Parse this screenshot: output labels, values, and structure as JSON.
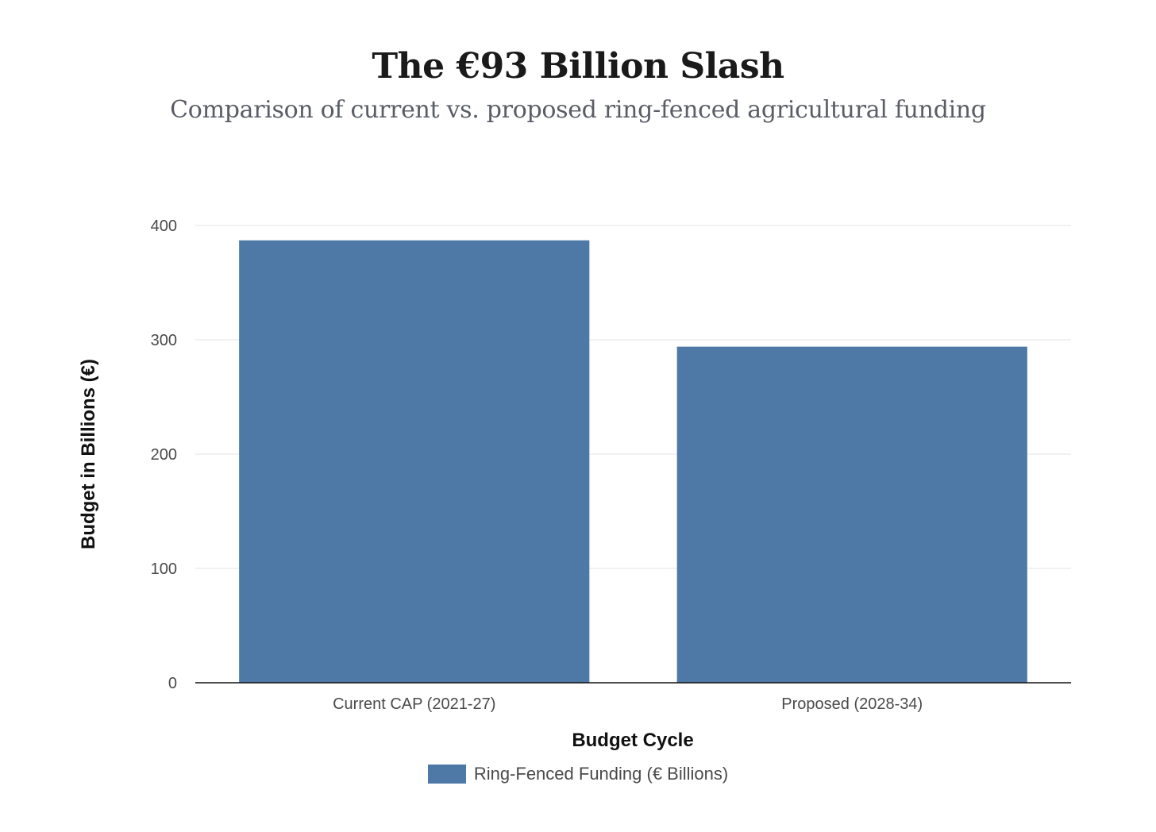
{
  "chart_data": {
    "type": "bar",
    "title": "The €93 Billion Slash",
    "subtitle": "Comparison of current vs. proposed ring-fenced agricultural funding",
    "categories": [
      "Current CAP (2021-27)",
      "Proposed (2028-34)"
    ],
    "series": [
      {
        "name": "Ring-Fenced Funding (€ Billions)",
        "values": [
          387,
          294
        ],
        "color": "#4e79a7"
      }
    ],
    "xlabel": "Budget Cycle",
    "ylabel": "Budget in Billions (€)",
    "ylim": [
      0,
      400
    ],
    "yticks": [
      "0",
      "100",
      "200",
      "300",
      "400"
    ],
    "grid": true,
    "legend_position": "bottom-center"
  }
}
